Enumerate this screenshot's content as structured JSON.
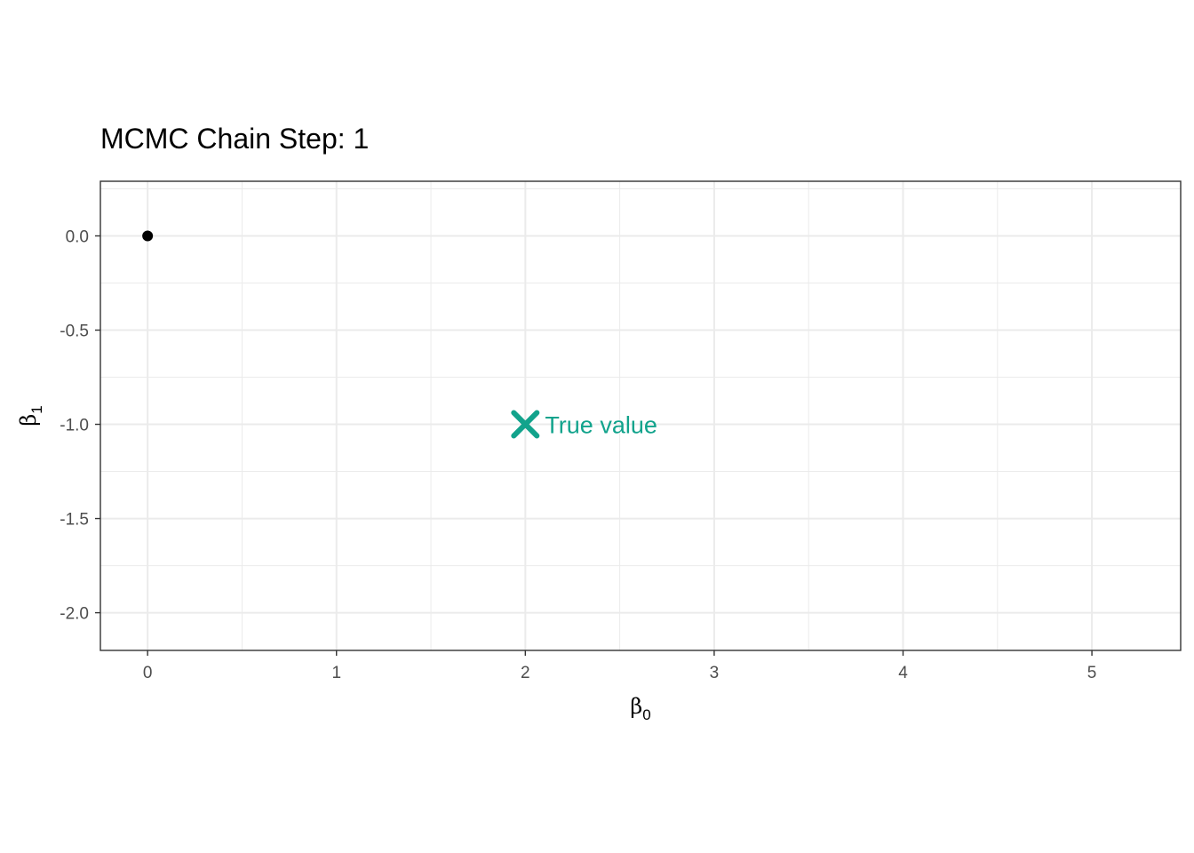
{
  "chart_data": {
    "type": "scatter",
    "title": "MCMC Chain Step: 1",
    "xlabel": "β",
    "xlabel_subscript": "0",
    "ylabel": "β",
    "ylabel_subscript": "1",
    "xlim": [
      -0.25,
      5.47
    ],
    "ylim": [
      -2.2,
      0.29
    ],
    "x_ticks": [
      0,
      1,
      2,
      3,
      4,
      5
    ],
    "x_tick_labels": [
      "0",
      "1",
      "2",
      "3",
      "4",
      "5"
    ],
    "y_ticks": [
      0.0,
      -0.5,
      -1.0,
      -1.5,
      -2.0
    ],
    "y_tick_labels": [
      "0.0",
      "-0.5",
      "-1.0",
      "-1.5",
      "-2.0"
    ],
    "grid": true,
    "points": [
      {
        "x": 0,
        "y": 0,
        "color": "#000000"
      }
    ],
    "annotation": {
      "x": 2,
      "y": -1,
      "marker": "x",
      "label": "True value",
      "color": "#12a38c"
    }
  }
}
